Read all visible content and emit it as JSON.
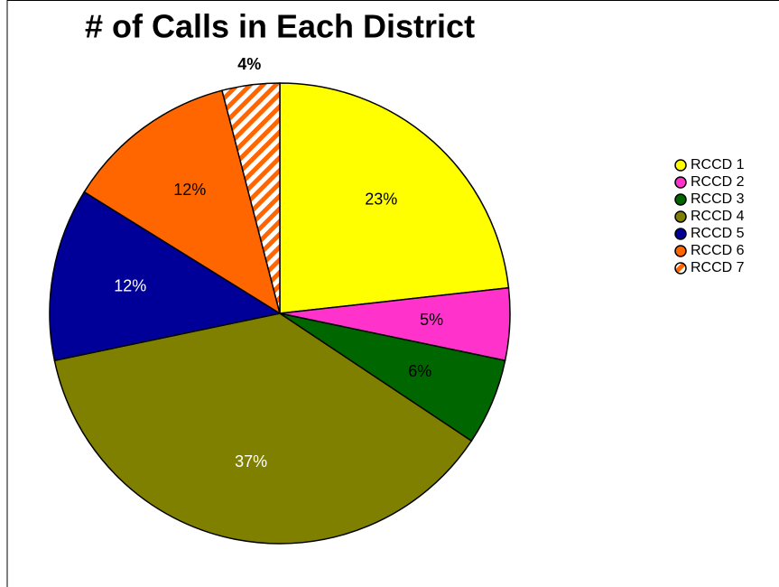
{
  "chart_data": {
    "type": "pie",
    "title": "# of Calls in Each District",
    "categories": [
      "RCCD 1",
      "RCCD 2",
      "RCCD 3",
      "RCCD 4",
      "RCCD 5",
      "RCCD 6",
      "RCCD 7"
    ],
    "values": [
      23,
      5,
      6,
      37,
      12,
      12,
      4
    ],
    "value_labels": [
      "23%",
      "5%",
      "6%",
      "37%",
      "12%",
      "12%",
      "4%"
    ],
    "colors": [
      "#ffff00",
      "#ff33cc",
      "#006600",
      "#808000",
      "#000099",
      "#ff6600",
      "#ff6600"
    ],
    "patterns": [
      null,
      null,
      null,
      null,
      null,
      null,
      "diagonal-stripes"
    ],
    "label_colors": [
      "#000000",
      "#000000",
      "#000000",
      "#ffffff",
      "#ffffff",
      "#000000",
      "#000000"
    ],
    "legend": "right"
  }
}
